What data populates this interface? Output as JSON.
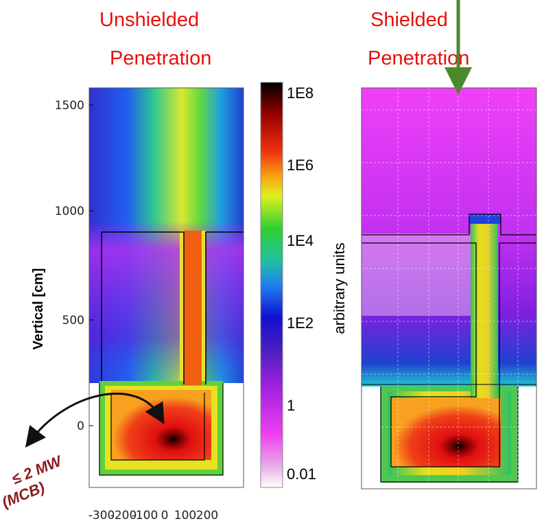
{
  "left_panel": {
    "title": [
      "Unshielded",
      "Penetration"
    ],
    "y_axis_label": "Vertical [cm]",
    "y_ticks": [
      "1500",
      "1000",
      "500",
      "0"
    ],
    "x_ticks": [
      "-300",
      "-200",
      "-100",
      "0",
      "100",
      "200"
    ],
    "annotation": [
      "≤ 2 MW",
      "(MCB)"
    ]
  },
  "colorbar": {
    "labels": [
      "1E8",
      "1E6",
      "1E4",
      "1E2",
      "1",
      "0.01"
    ],
    "unit_label": "arbitrary units"
  },
  "right_panel": {
    "title": [
      "Shielded",
      "Penetration"
    ]
  }
}
